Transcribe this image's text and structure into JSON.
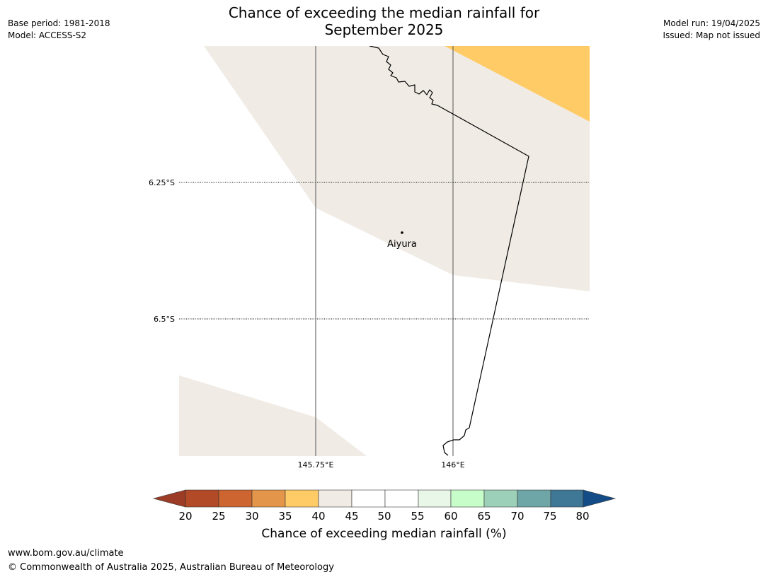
{
  "header": {
    "title_line1": "Chance of exceeding the median rainfall for",
    "title_line2": "September 2025",
    "base_period": "Base period: 1981-2018",
    "model": "Model: ACCESS-S2",
    "model_run": "Model run: 19/04/2025",
    "issued": "Issued: Map not issued"
  },
  "map": {
    "lat_labels": [
      "6.25°S",
      "6.5°S"
    ],
    "lon_labels": [
      "145.75°E",
      "146°E"
    ],
    "place_label": "Aiyura",
    "colors": {
      "near_median_40_45": "#f0ebe5",
      "below_35_40": "#fecb66",
      "background": "#ffffff",
      "coast_line": "#000000",
      "grid_line": "#555555"
    }
  },
  "colorbar": {
    "title": "Chance of exceeding median rainfall (%)",
    "ticks": [
      "20",
      "25",
      "30",
      "35",
      "40",
      "45",
      "50",
      "55",
      "60",
      "65",
      "70",
      "75",
      "80"
    ],
    "under_color": "#9c3b26",
    "over_color": "#134c86",
    "bins": [
      "#b24a27",
      "#cd6530",
      "#e3964a",
      "#fecb66",
      "#f0ebe5",
      "#ffffff",
      "#ffffff",
      "#e9f7e9",
      "#c7fdc8",
      "#9dd0b9",
      "#6ea5a7",
      "#3f7797"
    ]
  },
  "footer": {
    "url": "www.bom.gov.au/climate",
    "copyright": "© Commonwealth of Australia 2025, Australian Bureau of Meteorology"
  }
}
